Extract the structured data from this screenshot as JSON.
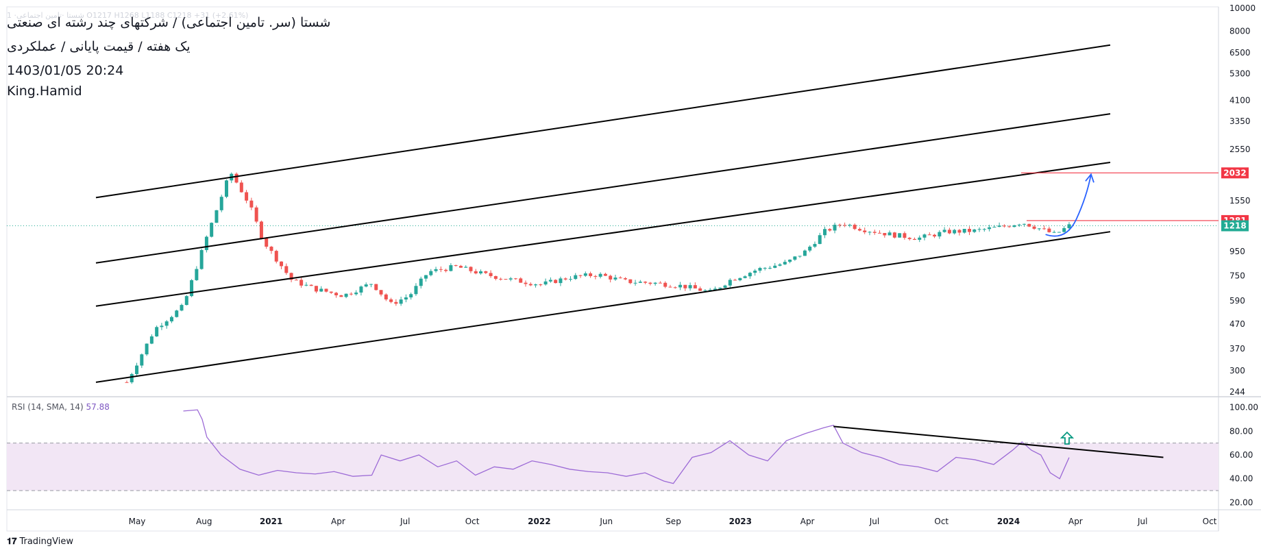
{
  "header": {
    "faded_ticker": "1 ·شستا ·تامین اجتماعی O1217 H1268 L1188 C1218 +31 (+2.61%)",
    "title_line1": "شستا (سر. تامین اجتماعی) / شرکتهای چند رشته ای صنعتی",
    "title_line2": "یک هفته / قیمت پایانی / عملکردی",
    "title_line3": "1403/01/05 20:24",
    "title_line4": "King.Hamid"
  },
  "rsi": {
    "label": "RSI (14, SMA, 14)",
    "value": "57.88"
  },
  "footer": {
    "brand": "TradingView"
  },
  "colors": {
    "up": "#26a69a",
    "down": "#ef5350",
    "rsi_line": "#9c6ad6",
    "rsi_band": "#f2e6f5",
    "price_label_red": "#f23645",
    "price_label_green": "#22ab94",
    "arrow": "#2962ff"
  },
  "chart_data": [
    {
      "type": "candlestick",
      "scale": "log",
      "ylim": [
        244,
        10000
      ],
      "y_ticks": [
        "10000",
        "8000",
        "6500",
        "5300",
        "4100",
        "3350",
        "2550",
        "1550",
        "950",
        "750",
        "590",
        "470",
        "370",
        "300",
        "244"
      ],
      "x_ticks": [
        "May",
        "Aug",
        "2021",
        "Apr",
        "Jul",
        "Oct",
        "2022",
        "Jun",
        "Sep",
        "2023",
        "Apr",
        "Jul",
        "Oct",
        "2024",
        "Apr",
        "Jul",
        "Oct"
      ],
      "price_labels": [
        {
          "value": 2032,
          "text": "2032",
          "color": "red"
        },
        {
          "value": 1281,
          "text": "1281",
          "color": "red"
        },
        {
          "value": 1218,
          "text": "1218",
          "color": "green"
        }
      ],
      "trend_path": [
        {
          "x": 0,
          "v": 268
        },
        {
          "x": 0.03,
          "v": 450
        },
        {
          "x": 0.06,
          "v": 560
        },
        {
          "x": 0.085,
          "v": 1100
        },
        {
          "x": 0.11,
          "v": 2050
        },
        {
          "x": 0.13,
          "v": 1500
        },
        {
          "x": 0.145,
          "v": 1050
        },
        {
          "x": 0.175,
          "v": 720
        },
        {
          "x": 0.2,
          "v": 660
        },
        {
          "x": 0.23,
          "v": 620
        },
        {
          "x": 0.26,
          "v": 700
        },
        {
          "x": 0.28,
          "v": 570
        },
        {
          "x": 0.3,
          "v": 620
        },
        {
          "x": 0.32,
          "v": 780
        },
        {
          "x": 0.35,
          "v": 820
        },
        {
          "x": 0.38,
          "v": 760
        },
        {
          "x": 0.41,
          "v": 720
        },
        {
          "x": 0.44,
          "v": 690
        },
        {
          "x": 0.47,
          "v": 740
        },
        {
          "x": 0.5,
          "v": 760
        },
        {
          "x": 0.53,
          "v": 710
        },
        {
          "x": 0.56,
          "v": 700
        },
        {
          "x": 0.59,
          "v": 680
        },
        {
          "x": 0.62,
          "v": 640
        },
        {
          "x": 0.64,
          "v": 720
        },
        {
          "x": 0.67,
          "v": 800
        },
        {
          "x": 0.7,
          "v": 850
        },
        {
          "x": 0.72,
          "v": 950
        },
        {
          "x": 0.74,
          "v": 1150
        },
        {
          "x": 0.76,
          "v": 1250
        },
        {
          "x": 0.78,
          "v": 1180
        },
        {
          "x": 0.81,
          "v": 1120
        },
        {
          "x": 0.84,
          "v": 1080
        },
        {
          "x": 0.87,
          "v": 1150
        },
        {
          "x": 0.9,
          "v": 1160
        },
        {
          "x": 0.93,
          "v": 1210
        },
        {
          "x": 0.95,
          "v": 1260
        },
        {
          "x": 0.97,
          "v": 1180
        },
        {
          "x": 0.985,
          "v": 1120
        },
        {
          "x": 1.0,
          "v": 1218
        }
      ],
      "channel_lines": [
        {
          "from": {
            "x": 0.0,
            "v": 1600
          },
          "to": {
            "x": 1.0,
            "v": 7000
          }
        },
        {
          "from": {
            "x": 0.0,
            "v": 850
          },
          "to": {
            "x": 1.0,
            "v": 3600
          }
        },
        {
          "from": {
            "x": 0.0,
            "v": 560
          },
          "to": {
            "x": 1.0,
            "v": 2250
          }
        },
        {
          "from": {
            "x": 0.0,
            "v": 268
          },
          "to": {
            "x": 1.0,
            "v": 1150
          }
        }
      ]
    },
    {
      "type": "line",
      "name": "RSI",
      "ylim": [
        15,
        105
      ],
      "y_ticks": [
        "100.00",
        "80.00",
        "60.00",
        "40.00",
        "20.00"
      ],
      "band": [
        30,
        70
      ],
      "values": [
        {
          "x": 0.06,
          "v": 97
        },
        {
          "x": 0.075,
          "v": 98
        },
        {
          "x": 0.08,
          "v": 90
        },
        {
          "x": 0.085,
          "v": 75
        },
        {
          "x": 0.1,
          "v": 60
        },
        {
          "x": 0.12,
          "v": 48
        },
        {
          "x": 0.14,
          "v": 43
        },
        {
          "x": 0.16,
          "v": 47
        },
        {
          "x": 0.18,
          "v": 45
        },
        {
          "x": 0.2,
          "v": 44
        },
        {
          "x": 0.22,
          "v": 46
        },
        {
          "x": 0.24,
          "v": 42
        },
        {
          "x": 0.26,
          "v": 43
        },
        {
          "x": 0.27,
          "v": 60
        },
        {
          "x": 0.29,
          "v": 55
        },
        {
          "x": 0.31,
          "v": 60
        },
        {
          "x": 0.33,
          "v": 50
        },
        {
          "x": 0.35,
          "v": 55
        },
        {
          "x": 0.37,
          "v": 43
        },
        {
          "x": 0.39,
          "v": 50
        },
        {
          "x": 0.41,
          "v": 48
        },
        {
          "x": 0.43,
          "v": 55
        },
        {
          "x": 0.45,
          "v": 52
        },
        {
          "x": 0.47,
          "v": 48
        },
        {
          "x": 0.49,
          "v": 46
        },
        {
          "x": 0.51,
          "v": 45
        },
        {
          "x": 0.53,
          "v": 42
        },
        {
          "x": 0.55,
          "v": 45
        },
        {
          "x": 0.57,
          "v": 38
        },
        {
          "x": 0.58,
          "v": 36
        },
        {
          "x": 0.6,
          "v": 58
        },
        {
          "x": 0.62,
          "v": 62
        },
        {
          "x": 0.64,
          "v": 72
        },
        {
          "x": 0.66,
          "v": 60
        },
        {
          "x": 0.68,
          "v": 55
        },
        {
          "x": 0.7,
          "v": 72
        },
        {
          "x": 0.72,
          "v": 78
        },
        {
          "x": 0.74,
          "v": 83
        },
        {
          "x": 0.75,
          "v": 85
        },
        {
          "x": 0.76,
          "v": 70
        },
        {
          "x": 0.78,
          "v": 62
        },
        {
          "x": 0.8,
          "v": 58
        },
        {
          "x": 0.82,
          "v": 52
        },
        {
          "x": 0.84,
          "v": 50
        },
        {
          "x": 0.86,
          "v": 46
        },
        {
          "x": 0.88,
          "v": 58
        },
        {
          "x": 0.9,
          "v": 56
        },
        {
          "x": 0.92,
          "v": 52
        },
        {
          "x": 0.94,
          "v": 64
        },
        {
          "x": 0.95,
          "v": 71
        },
        {
          "x": 0.96,
          "v": 64
        },
        {
          "x": 0.97,
          "v": 60
        },
        {
          "x": 0.98,
          "v": 45
        },
        {
          "x": 0.99,
          "v": 40
        },
        {
          "x": 0.995,
          "v": 49
        },
        {
          "x": 1.0,
          "v": 57.88
        }
      ],
      "trendline": {
        "from": {
          "x": 0.75,
          "v": 84
        },
        "to": {
          "x": 1.1,
          "v": 58
        }
      }
    }
  ]
}
